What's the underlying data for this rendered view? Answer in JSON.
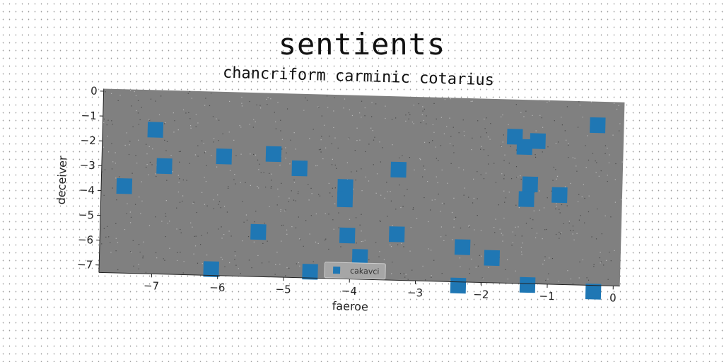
{
  "chart_data": {
    "type": "scatter",
    "title": "sentients",
    "subtitle": "chancriform carminic cotarius",
    "xlabel": "faeroe",
    "ylabel": "deceiver",
    "xlim": [
      -7.8,
      0.1
    ],
    "ylim": [
      -7.3,
      0.1
    ],
    "xticks": [
      -7,
      -6,
      -5,
      -4,
      -3,
      -2,
      -1,
      0
    ],
    "yticks": [
      0,
      -1,
      -2,
      -3,
      -4,
      -5,
      -6,
      -7
    ],
    "grid": false,
    "legend": "lower-center",
    "series": [
      {
        "name": "cakavci",
        "color": "#1f77b4",
        "marker": "square",
        "points": [
          [
            -7.0,
            -1.5
          ],
          [
            -6.85,
            -2.95
          ],
          [
            -7.45,
            -3.8
          ],
          [
            -5.95,
            -2.5
          ],
          [
            -5.2,
            -2.35
          ],
          [
            -4.8,
            -2.9
          ],
          [
            -5.4,
            -5.5
          ],
          [
            -6.1,
            -7.05
          ],
          [
            -4.6,
            -7.05
          ],
          [
            -4.1,
            -3.6
          ],
          [
            -4.1,
            -4.1
          ],
          [
            -4.05,
            -5.55
          ],
          [
            -3.85,
            -6.4
          ],
          [
            -3.3,
            -2.85
          ],
          [
            -3.3,
            -5.45
          ],
          [
            -2.35,
            -7.45
          ],
          [
            -2.3,
            -5.9
          ],
          [
            -1.85,
            -6.3
          ],
          [
            -1.55,
            -1.4
          ],
          [
            -1.4,
            -1.8
          ],
          [
            -1.3,
            -3.3
          ],
          [
            -1.35,
            -3.9
          ],
          [
            -1.2,
            -1.55
          ],
          [
            -0.85,
            -3.7
          ],
          [
            -1.3,
            -7.35
          ],
          [
            -0.3,
            -0.85
          ],
          [
            -0.3,
            -7.55
          ]
        ]
      }
    ]
  }
}
